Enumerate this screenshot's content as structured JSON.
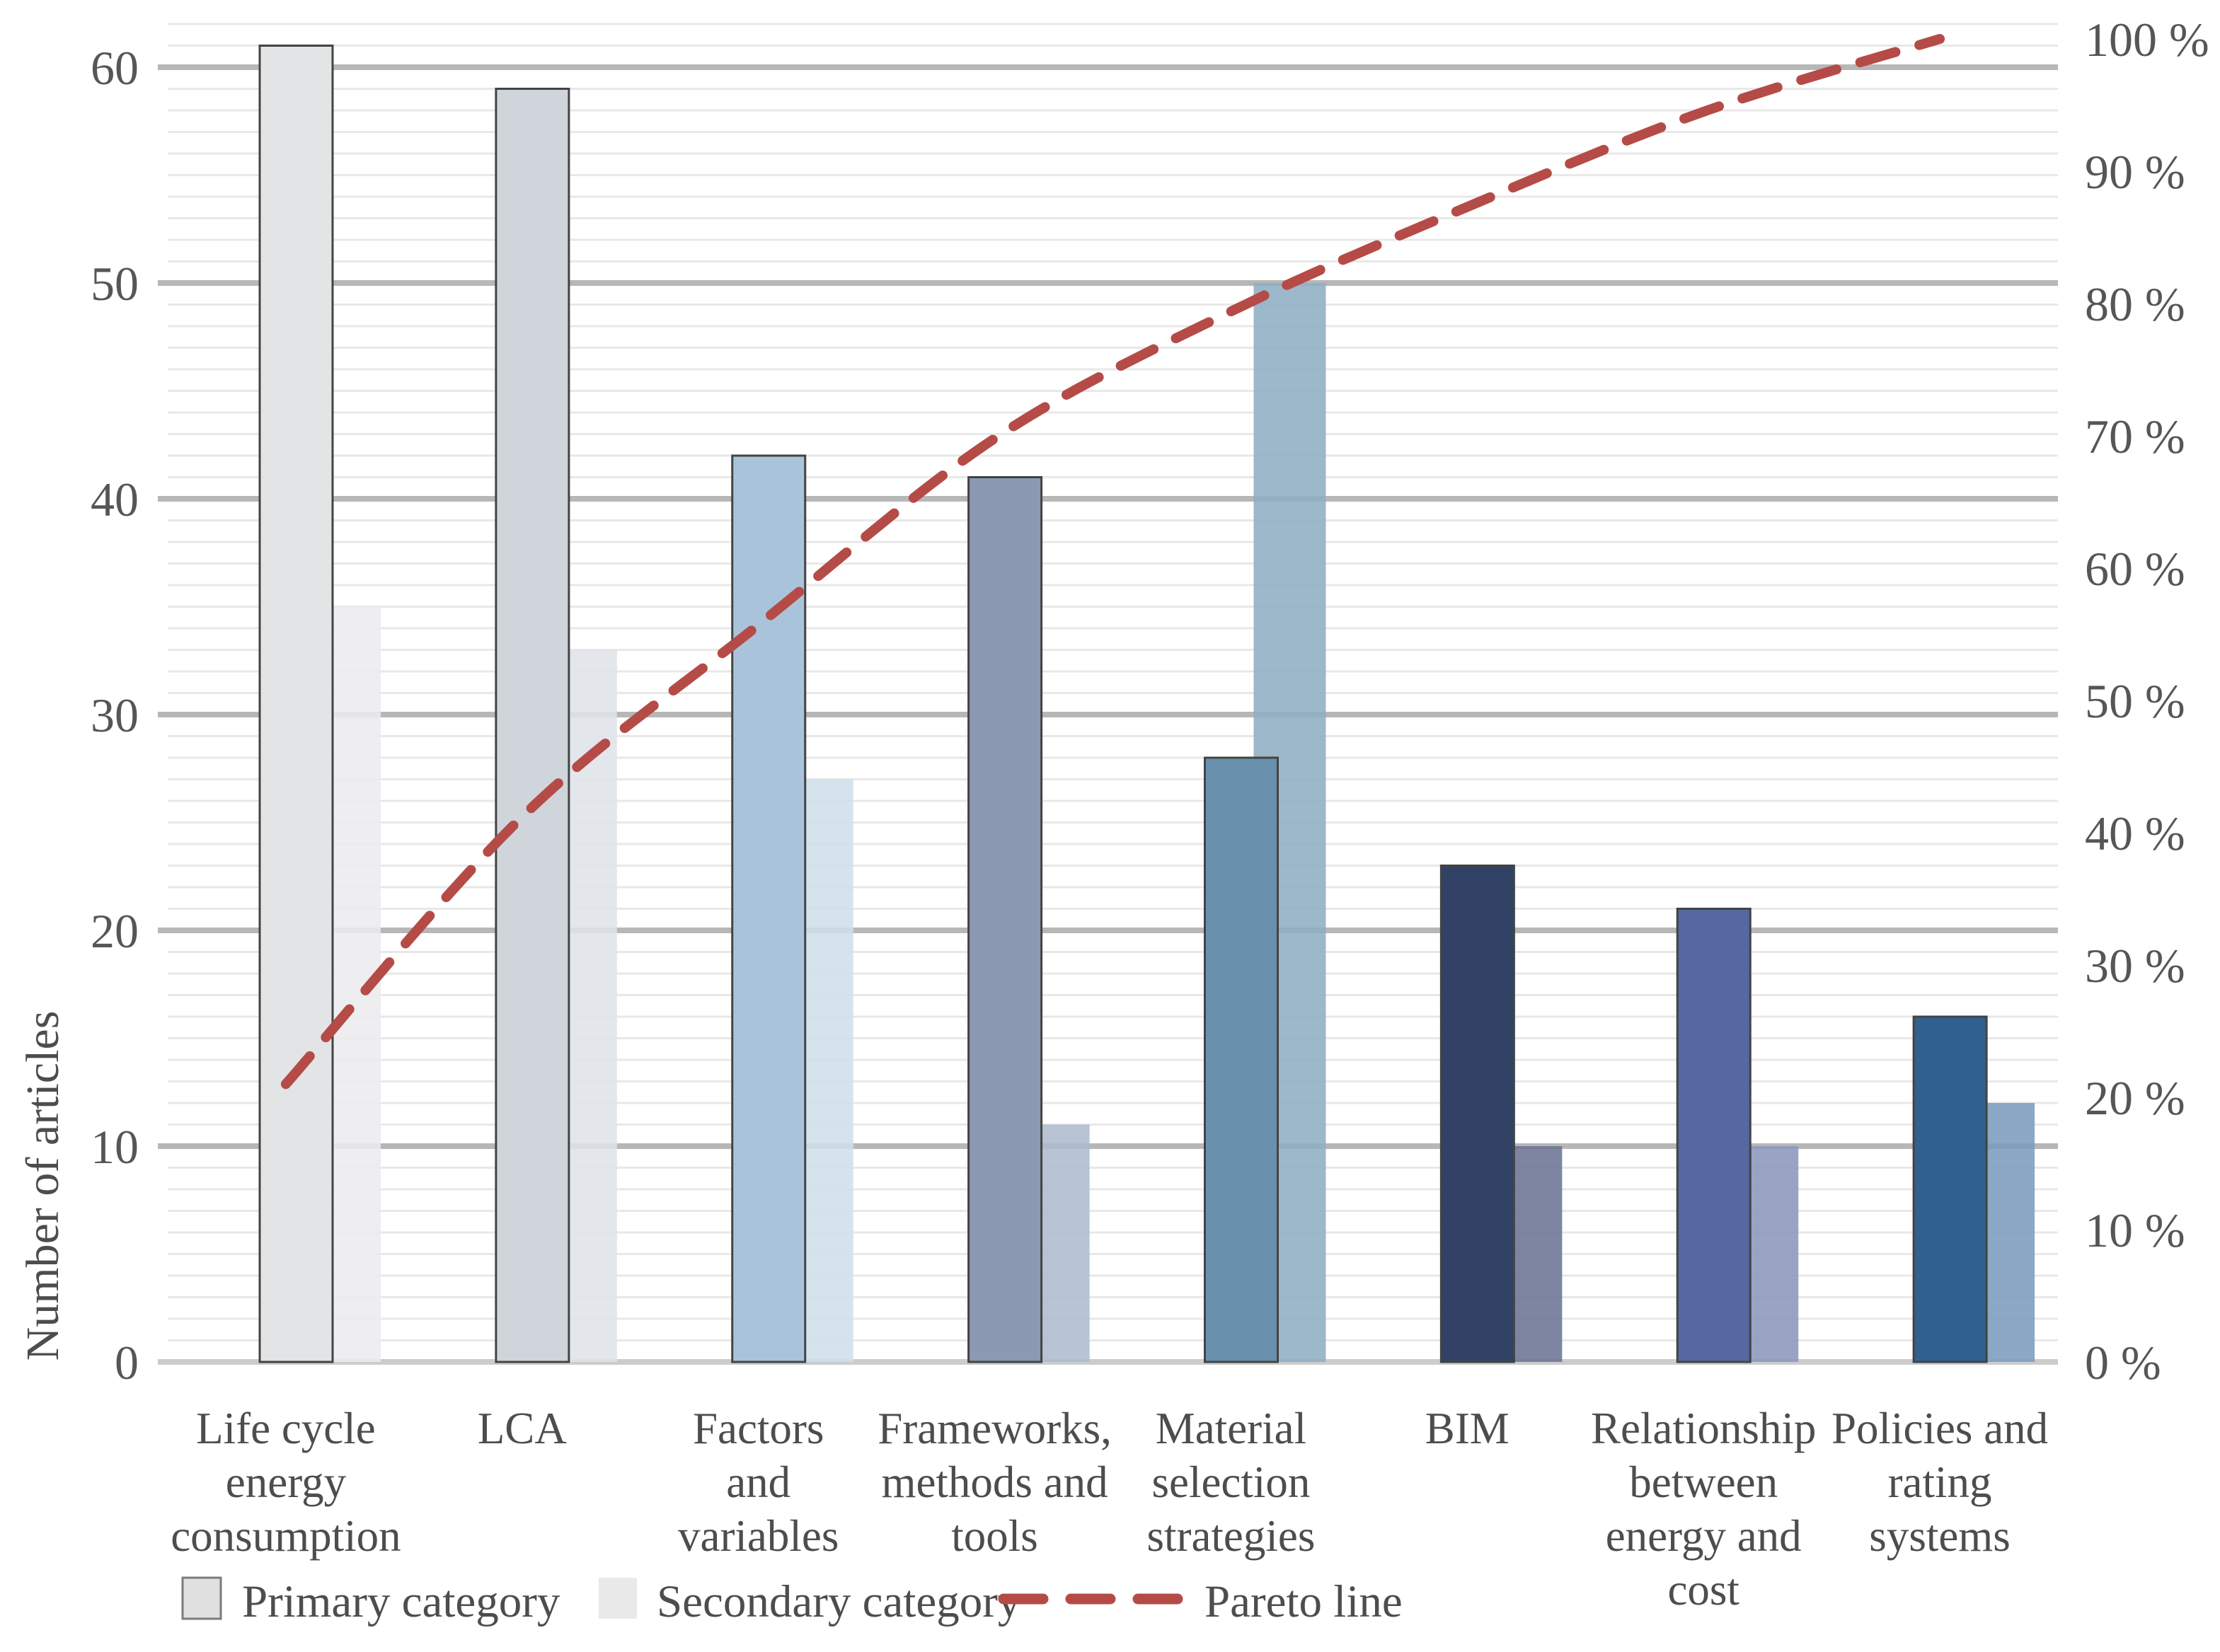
{
  "figure": {
    "background": "#ffffff",
    "tick_text_color": "#565656",
    "label_text_color": "#4d4d4d"
  },
  "y_axis": {
    "title": "Number of articles",
    "tick_labels": [
      "0",
      "10",
      "20",
      "30",
      "40",
      "50",
      "60"
    ],
    "min": 0,
    "max": 60,
    "major_step": 10,
    "minor_step": 1
  },
  "right_axis": {
    "tick_labels": [
      "0 %",
      "10 %",
      "20 %",
      "30 %",
      "40 %",
      "50 %",
      "60 %",
      "70 %",
      "80 %",
      "90 %",
      "100 %"
    ],
    "min": 0,
    "max": 100
  },
  "legend": {
    "position": "bottom",
    "items": [
      {
        "label": "Primary category",
        "swatch_fill": "#e0e0e0",
        "swatch_border": "#7a7a7a"
      },
      {
        "label": "Secondary category",
        "swatch_fill": "#e9e9e9",
        "swatch_border": "none"
      },
      {
        "label": "Pareto line",
        "line_color": "#b54b47",
        "line_style": "dashed"
      }
    ]
  },
  "chart_data": {
    "type": "bar",
    "subtype": "pareto",
    "title": "",
    "xlabel": "",
    "ylabel": "Number of articles",
    "ylim": [
      0,
      62
    ],
    "right_ylim": [
      0,
      101
    ],
    "grid": {
      "major": true,
      "minor": true,
      "major_color": "#b7b7b7",
      "minor_color": "#e8e8e8",
      "baseline_color": "#cccccc"
    },
    "legend_position": "bottom",
    "categories": [
      "Life cycle energy consumption",
      "LCA",
      "Factors and variables",
      "Frameworks, methods and tools",
      "Material selection strategies",
      "BIM",
      "Relationship between energy and cost",
      "Policies and rating systems"
    ],
    "category_label_lines": [
      [
        "Life cycle",
        "energy",
        "consumption"
      ],
      [
        "LCA"
      ],
      [
        "Factors",
        "and",
        "variables"
      ],
      [
        "Frameworks,",
        "methods and",
        "tools"
      ],
      [
        "Material",
        "selection",
        "strategies"
      ],
      [
        "BIM"
      ],
      [
        "Relationship",
        "between",
        "energy and",
        "cost"
      ],
      [
        "Policies and",
        "rating",
        "systems"
      ]
    ],
    "series": [
      {
        "name": "Primary category",
        "values": [
          61,
          59,
          42,
          41,
          28,
          23,
          21,
          16
        ],
        "bar_colors": [
          "#e3e4e5",
          "#d0d5dc",
          "#a9c4da",
          "#8b9ab2",
          "#6991ae",
          "#324266",
          "#5569a0",
          "#30618e"
        ],
        "border_color": "#434343"
      },
      {
        "name": "Secondary category",
        "values": [
          35,
          33,
          27,
          11,
          50,
          10,
          10,
          12
        ],
        "bar_colors": [
          "#ececee",
          "#dfe3e8",
          "#cfdfea",
          "#aebbce",
          "#8fadc4",
          "#6b7494",
          "#8b97bd",
          "#7b9dbf"
        ],
        "opacity": 0.88
      }
    ],
    "line_series": {
      "name": "Pareto line",
      "axis": "right",
      "unit": "%",
      "values": [
        21.0,
        41.2,
        55.7,
        69.8,
        79.4,
        87.3,
        94.5,
        100.0
      ],
      "color": "#b54b47",
      "style": "dashed",
      "smooth": true
    }
  }
}
